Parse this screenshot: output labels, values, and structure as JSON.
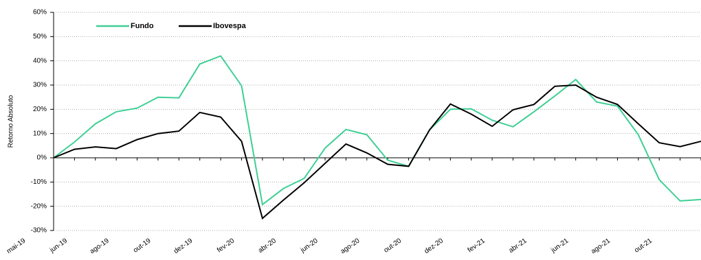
{
  "chart_data": {
    "type": "line",
    "y_label": "Retorno Absoluto",
    "categories": [
      "mai-19",
      null,
      "jun-19",
      null,
      "ago-19",
      null,
      "out-19",
      null,
      "dez-19",
      null,
      "fev-20",
      null,
      "abr-20",
      null,
      "jun-20",
      null,
      "ago-20",
      null,
      "out-20",
      null,
      "dez-20",
      null,
      "fev-21",
      null,
      "abr-21",
      null,
      "jun-21",
      null,
      "ago-21",
      null,
      "out-21",
      null
    ],
    "series": [
      {
        "name": "Fundo",
        "color": "#3ecf94",
        "values": [
          0,
          6.5,
          14,
          19,
          20.5,
          25,
          24.7,
          38.7,
          42,
          29.7,
          -19.3,
          -12.7,
          -8.5,
          4,
          11.7,
          9.5,
          -1,
          -3.5,
          11.5,
          20,
          20.2,
          15.5,
          12.8,
          19,
          25.5,
          32.3,
          23,
          21.3,
          9.5,
          -9,
          -17.8,
          -17.2
        ]
      },
      {
        "name": "Ibovespa",
        "color": "#000000",
        "values": [
          0,
          3.5,
          4.5,
          3.8,
          7.5,
          10,
          11,
          18.7,
          16.8,
          6.8,
          -25,
          -17.5,
          -10.3,
          -2.3,
          5.7,
          2,
          -2.7,
          -3.5,
          11.5,
          22.2,
          18,
          13,
          19.8,
          22,
          29.5,
          30,
          25,
          22,
          14,
          6.2,
          4.6,
          6.8
        ]
      }
    ],
    "ylim": [
      -30,
      60
    ],
    "yticks": [
      {
        "value": -30,
        "label": "-30%"
      },
      {
        "value": -20,
        "label": "-20%"
      },
      {
        "value": -10,
        "label": "-10%"
      },
      {
        "value": 0,
        "label": "0%"
      },
      {
        "value": 10,
        "label": "10%"
      },
      {
        "value": 20,
        "label": "20%"
      },
      {
        "value": 30,
        "label": "30%"
      },
      {
        "value": 40,
        "label": "40%"
      },
      {
        "value": 50,
        "label": "50%"
      },
      {
        "value": 60,
        "label": "60%"
      }
    ],
    "grid": true,
    "legend": "top-left"
  }
}
